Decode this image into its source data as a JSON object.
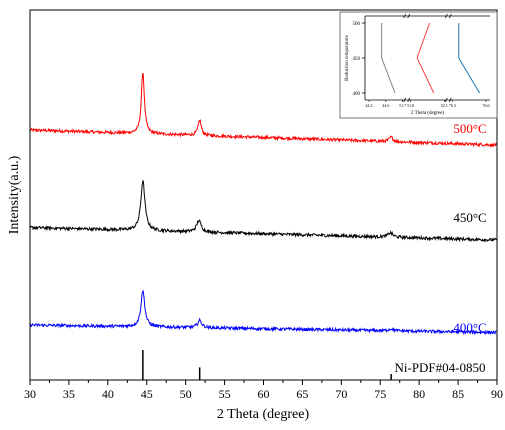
{
  "chart_data": {
    "type": "line",
    "xlabel": "2 Theta (degree)",
    "ylabel": "Intensity(a.u.)",
    "xlim": [
      30,
      90
    ],
    "xticks": [
      30,
      35,
      40,
      45,
      50,
      55,
      60,
      65,
      70,
      75,
      80,
      85,
      90
    ],
    "y_ticks_shown": false,
    "grid": false,
    "series": [
      {
        "name": "500°C",
        "color": "#ff0000",
        "baseline_start": 0.84,
        "baseline_end": 0.78,
        "noise": 0.012,
        "peaks": [
          {
            "x": 44.5,
            "height": 6.2,
            "width": 0.23
          },
          {
            "x": 51.8,
            "height": 1.5,
            "width": 0.25
          },
          {
            "x": 76.4,
            "height": 0.45,
            "width": 0.28
          }
        ]
      },
      {
        "name": "450°C",
        "color": "#000000",
        "baseline_start": 0.45,
        "baseline_end": 0.4,
        "noise": 0.012,
        "peaks": [
          {
            "x": 44.5,
            "height": 4.95,
            "width": 0.32
          },
          {
            "x": 51.7,
            "height": 1.15,
            "width": 0.35
          },
          {
            "x": 76.3,
            "height": 0.43,
            "width": 0.38
          }
        ]
      },
      {
        "name": "400°C",
        "color": "#0000ff",
        "baseline_start": 0.06,
        "baseline_end": 0.03,
        "noise": 0.012,
        "peaks": [
          {
            "x": 44.5,
            "height": 3.6,
            "width": 0.3
          },
          {
            "x": 51.8,
            "height": 0.72,
            "width": 0.33
          },
          {
            "x": 76.4,
            "height": 0.2,
            "width": 0.36
          }
        ]
      }
    ],
    "reference": {
      "name": "Ni-PDF#04-0850",
      "lines": [
        {
          "x": 44.5,
          "rel": 1.0
        },
        {
          "x": 51.8,
          "rel": 0.42
        },
        {
          "x": 76.4,
          "rel": 0.2
        }
      ]
    },
    "inset": {
      "type": "line",
      "xlabel": "2 Theta (degree)",
      "ylabel": "Reduction temperature",
      "broken_x_axis": true,
      "segment_ticks": [
        [
          "44.2",
          "44.6",
          "51.7"
        ],
        [
          "51.8",
          "52.1"
        ],
        [
          "76.3",
          "76.6"
        ]
      ],
      "y_ticks": [
        "400",
        "450",
        "500"
      ],
      "ylim": [
        390,
        510
      ],
      "series": [
        {
          "name": "Ni (111)",
          "color": "#7f7f7f",
          "x_rel": [
            0.4,
            0.4,
            0.72
          ],
          "y": [
            500,
            450,
            400
          ]
        },
        {
          "name": "Ni (200)",
          "color": "#ff4040",
          "x_rel": [
            0.55,
            0.25,
            0.65
          ],
          "y": [
            500,
            450,
            400
          ]
        },
        {
          "name": "Ni (220)",
          "color": "#1f77b4",
          "x_rel": [
            0.25,
            0.25,
            0.75
          ],
          "y": [
            500,
            450,
            400
          ]
        }
      ]
    }
  }
}
